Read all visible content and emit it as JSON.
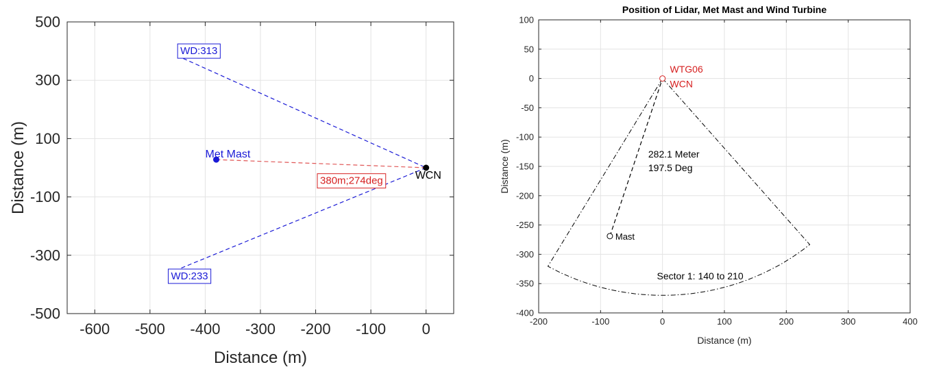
{
  "chart_data": [
    {
      "type": "line",
      "title": "",
      "xlabel": "Distance (m)",
      "ylabel": "Distance (m)",
      "xlim": [
        -650,
        50
      ],
      "ylim": [
        -500,
        500
      ],
      "xticks": [
        -600,
        -500,
        -400,
        -300,
        -200,
        -100,
        0
      ],
      "yticks": [
        -500,
        -300,
        -100,
        100,
        300,
        500
      ],
      "grid": true,
      "series": [
        {
          "name": "",
          "style": "dashed",
          "color": "#1a1ad6",
          "x": [
            -440,
            0
          ],
          "y": [
            375,
            0
          ]
        },
        {
          "name": "",
          "style": "dashed",
          "color": "#1a1ad6",
          "x": [
            0,
            -445
          ],
          "y": [
            0,
            -345
          ]
        },
        {
          "name": "",
          "style": "dashed",
          "color": "#e05555",
          "x": [
            -380,
            0
          ],
          "y": [
            28,
            0
          ]
        }
      ],
      "points": [
        {
          "label": "Met Mast",
          "x": -380,
          "y": 28,
          "color": "#1a1ad6"
        },
        {
          "label": "WCN",
          "x": 0,
          "y": 0,
          "color": "#000000"
        }
      ],
      "annotations": [
        {
          "text": "WD:313",
          "x": -445,
          "y": 400,
          "boxed": true,
          "color": "#1a1ad6"
        },
        {
          "text": "WD:233",
          "x": -462,
          "y": -372,
          "boxed": true,
          "color": "#1a1ad6"
        },
        {
          "text": "380m;274deg",
          "x": -192,
          "y": -45,
          "boxed": true,
          "color": "#d62020"
        }
      ]
    },
    {
      "type": "line",
      "title": "Position of Lidar, Met Mast and Wind Turbine",
      "xlabel": "Distance (m)",
      "ylabel": "Distance (m)",
      "xlim": [
        -200,
        400
      ],
      "ylim": [
        -400,
        100
      ],
      "xticks": [
        -200,
        -100,
        0,
        100,
        200,
        300,
        400
      ],
      "yticks": [
        -400,
        -350,
        -300,
        -250,
        -200,
        -150,
        -100,
        -50,
        0,
        50,
        100
      ],
      "grid": true,
      "sector": {
        "center": [
          0,
          0
        ],
        "radius": 370,
        "from_deg": 140,
        "to_deg": 210,
        "style": "dashdot"
      },
      "series": [
        {
          "name": "",
          "style": "dashed",
          "color": "#000000",
          "x": [
            -85,
            0
          ],
          "y": [
            -269,
            0
          ]
        }
      ],
      "points": [
        {
          "label": "Mast",
          "x": -85,
          "y": -269,
          "color": "#000000",
          "marker": "circle-open"
        },
        {
          "label": "",
          "x": 0,
          "y": 0,
          "color": "#d62020",
          "marker": "circle-open"
        }
      ],
      "annotations": [
        {
          "text": "WTG06",
          "x": 12,
          "y": 10,
          "color": "#d62020"
        },
        {
          "text": "WCN",
          "x": 12,
          "y": -15,
          "color": "#d62020"
        },
        {
          "text": "282.1 Meter",
          "x": -23,
          "y": -135,
          "color": "#000000"
        },
        {
          "text": "197.5 Deg",
          "x": -23,
          "y": -158,
          "color": "#000000"
        },
        {
          "text": "Sector 1: 140 to 210",
          "x": -9,
          "y": -343,
          "color": "#000000"
        }
      ]
    }
  ]
}
